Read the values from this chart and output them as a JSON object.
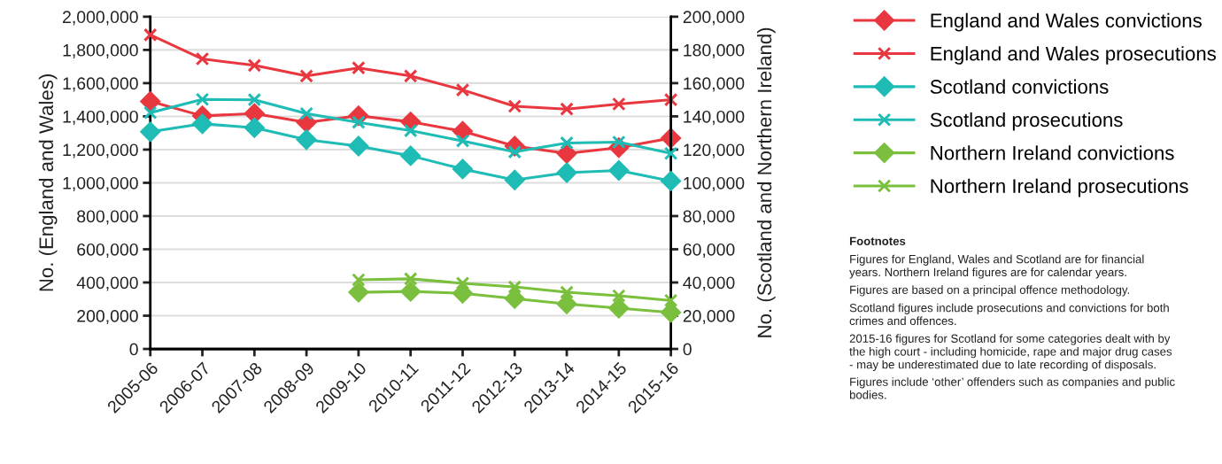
{
  "chart_data": {
    "type": "line",
    "ylabel": "No. (England and Wales)",
    "y2label": "No. (Scotland and Northern Ireland)",
    "categories": [
      "2005-06",
      "2006-07",
      "2007-08",
      "2008-09",
      "2009-10",
      "2010-11",
      "2011-12",
      "2012-13",
      "2013-14",
      "2014-15",
      "2015-16"
    ],
    "series": [
      {
        "name": "England and Wales convictions",
        "color": "#e8373f",
        "marker": "diamond",
        "values": [
          1490000,
          1403000,
          1417000,
          1364000,
          1404000,
          1367000,
          1310000,
          1221000,
          1177000,
          1212000,
          1269000
        ]
      },
      {
        "name": "England and Wales prosecutions",
        "color": "#e8373f",
        "marker": "cross",
        "values": [
          1891000,
          1746000,
          1707000,
          1643000,
          1692000,
          1643000,
          1559000,
          1461000,
          1444000,
          1474000,
          1500000
        ]
      },
      {
        "name": "Scotland convictions",
        "color": "#1fbcb5",
        "marker": "diamond",
        "axis": "y2",
        "values": [
          130700,
          135500,
          133200,
          126000,
          122100,
          116300,
          108300,
          101700,
          106100,
          107400,
          101100
        ]
      },
      {
        "name": "Scotland prosecutions",
        "color": "#1fbcb5",
        "marker": "cross",
        "axis": "y2",
        "values": [
          142200,
          150200,
          150000,
          141700,
          136400,
          131400,
          125200,
          118600,
          124000,
          124500,
          117700
        ]
      },
      {
        "name": "Northern Ireland convictions",
        "color": "#7abf3d",
        "marker": "diamond",
        "axis": "y2",
        "values": [
          null,
          null,
          null,
          null,
          34100,
          34600,
          33500,
          30300,
          27100,
          24500,
          22000
        ]
      },
      {
        "name": "Northern Ireland prosecutions",
        "color": "#7abf3d",
        "marker": "cross",
        "axis": "y2",
        "values": [
          null,
          null,
          null,
          null,
          41600,
          42200,
          39500,
          37300,
          34100,
          32000,
          29200
        ]
      }
    ],
    "ylim": [
      0,
      2000000
    ],
    "yticks": [
      {
        "value": 0,
        "label": "0"
      },
      {
        "value": 200000,
        "label": "200,000"
      },
      {
        "value": 400000,
        "label": "400,000"
      },
      {
        "value": 600000,
        "label": "600,000"
      },
      {
        "value": 800000,
        "label": "800,000"
      },
      {
        "value": 1000000,
        "label": "1,000,000"
      },
      {
        "value": 1200000,
        "label": "1,200,000"
      },
      {
        "value": 1400000,
        "label": "1,400,000"
      },
      {
        "value": 1600000,
        "label": "1,600,000"
      },
      {
        "value": 1800000,
        "label": "1,800,000"
      },
      {
        "value": 2000000,
        "label": "2,000,000"
      }
    ],
    "y2lim": [
      0,
      200000
    ],
    "y2ticks": [
      {
        "value": 0,
        "label": "0"
      },
      {
        "value": 20000,
        "label": "20,000"
      },
      {
        "value": 40000,
        "label": "40,000"
      },
      {
        "value": 60000,
        "label": "60,000"
      },
      {
        "value": 80000,
        "label": "80,000"
      },
      {
        "value": 100000,
        "label": "100,000"
      },
      {
        "value": 120000,
        "label": "120,000"
      },
      {
        "value": 140000,
        "label": "140,000"
      },
      {
        "value": 160000,
        "label": "160,000"
      },
      {
        "value": 180000,
        "label": "180,000"
      },
      {
        "value": 200000,
        "label": "200,000"
      }
    ],
    "grid": "y",
    "legend": "right",
    "line_style": "solid",
    "annotations": [
      "Footnotes",
      "Figures for England, Wales and Scotland are for financial years. Northern Ireland figures are for calendar years.",
      "Figures are based on a principal offence methodology.",
      "Scotland figures include prosecutions and convictions for both crimes and offences.",
      "2015-16 figures for Scotland for some categories dealt with by the high court - including homicide, rape and major drug cases - may be underestimated due to late recording of disposals.",
      "Figures include ‘other’ offenders such as companies and public bodies."
    ]
  }
}
